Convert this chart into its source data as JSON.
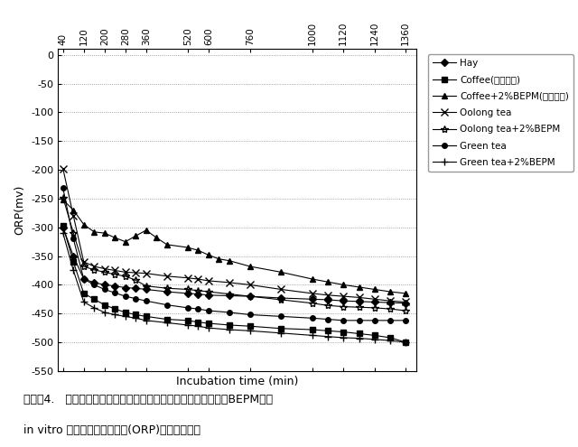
{
  "x_ticks": [
    40,
    120,
    200,
    280,
    360,
    520,
    600,
    760,
    1000,
    1120,
    1240,
    1360
  ],
  "ylim": [
    -550,
    10
  ],
  "yticks": [
    0,
    -50,
    -100,
    -150,
    -200,
    -250,
    -300,
    -350,
    -400,
    -450,
    -500,
    -550
  ],
  "ylabel": "ORP(mv)",
  "xlabel": "Incubation time (min)",
  "caption_line1": "グラプ4.   コーヒー糕、烏龍茶糕及び緑茶糕の微生物処理（２％BEPM）が",
  "caption_line2": "in vitro 培養液酸化還元電位(ORP)に及ぼす影響",
  "series": [
    {
      "label": "Hay",
      "marker": "D",
      "markersize": 4,
      "color": "#000000",
      "x": [
        40,
        80,
        120,
        160,
        200,
        240,
        280,
        320,
        360,
        440,
        520,
        560,
        600,
        680,
        760,
        880,
        1000,
        1060,
        1120,
        1180,
        1240,
        1300,
        1360
      ],
      "y": [
        -300,
        -350,
        -390,
        -396,
        -400,
        -402,
        -405,
        -406,
        -408,
        -412,
        -415,
        -416,
        -418,
        -419,
        -420,
        -423,
        -425,
        -426,
        -428,
        -429,
        -430,
        -431,
        -432
      ]
    },
    {
      "label": "Coffee(比較例１)",
      "marker": "s",
      "markersize": 4,
      "color": "#000000",
      "x": [
        40,
        80,
        120,
        160,
        200,
        240,
        280,
        320,
        360,
        440,
        520,
        560,
        600,
        680,
        760,
        880,
        1000,
        1060,
        1120,
        1180,
        1240,
        1300,
        1360
      ],
      "y": [
        -298,
        -360,
        -415,
        -425,
        -435,
        -442,
        -448,
        -452,
        -455,
        -460,
        -462,
        -465,
        -467,
        -470,
        -472,
        -476,
        -478,
        -480,
        -482,
        -485,
        -488,
        -492,
        -500
      ]
    },
    {
      "label": "Coffee+2%BEPM(実施例１)",
      "marker": "^",
      "markersize": 5,
      "color": "#000000",
      "x": [
        40,
        80,
        120,
        160,
        200,
        240,
        280,
        320,
        360,
        400,
        440,
        520,
        560,
        600,
        640,
        680,
        760,
        880,
        1000,
        1060,
        1120,
        1180,
        1240,
        1300,
        1360
      ],
      "y": [
        -252,
        -270,
        -295,
        -308,
        -310,
        -318,
        -325,
        -315,
        -305,
        -318,
        -330,
        -335,
        -340,
        -348,
        -355,
        -358,
        -368,
        -378,
        -390,
        -395,
        -400,
        -404,
        -408,
        -412,
        -415
      ]
    },
    {
      "label": "Oolong tea",
      "marker": "x",
      "markersize": 6,
      "color": "#000000",
      "x": [
        40,
        80,
        120,
        160,
        200,
        240,
        280,
        320,
        360,
        440,
        520,
        560,
        600,
        680,
        760,
        880,
        1000,
        1060,
        1120,
        1180,
        1240,
        1300,
        1360
      ],
      "y": [
        -198,
        -280,
        -360,
        -368,
        -372,
        -375,
        -378,
        -379,
        -380,
        -385,
        -388,
        -390,
        -393,
        -396,
        -400,
        -408,
        -415,
        -418,
        -420,
        -422,
        -425,
        -428,
        -430
      ]
    },
    {
      "label": "Oolong tea+2%BEPM",
      "marker": "*",
      "markersize": 6,
      "color": "#000000",
      "x": [
        40,
        80,
        120,
        160,
        200,
        240,
        280,
        320,
        360,
        440,
        520,
        560,
        600,
        680,
        760,
        880,
        1000,
        1060,
        1120,
        1180,
        1240,
        1300,
        1360
      ],
      "y": [
        -248,
        -310,
        -368,
        -374,
        -378,
        -382,
        -385,
        -392,
        -402,
        -406,
        -408,
        -410,
        -412,
        -416,
        -420,
        -426,
        -432,
        -436,
        -438,
        -439,
        -440,
        -442,
        -445
      ]
    },
    {
      "label": "Green tea",
      "marker": "o",
      "markersize": 4,
      "color": "#000000",
      "x": [
        40,
        80,
        120,
        160,
        200,
        240,
        280,
        320,
        360,
        440,
        520,
        560,
        600,
        680,
        760,
        880,
        1000,
        1060,
        1120,
        1180,
        1240,
        1300,
        1360
      ],
      "y": [
        -232,
        -320,
        -390,
        -400,
        -408,
        -414,
        -420,
        -424,
        -428,
        -435,
        -440,
        -442,
        -445,
        -448,
        -452,
        -455,
        -458,
        -460,
        -462,
        -462,
        -462,
        -462,
        -462
      ]
    },
    {
      "label": "Green tea+2%BEPM",
      "marker": "+",
      "markersize": 6,
      "color": "#000000",
      "x": [
        40,
        80,
        120,
        160,
        200,
        240,
        280,
        320,
        360,
        440,
        520,
        560,
        600,
        680,
        760,
        880,
        1000,
        1060,
        1120,
        1180,
        1240,
        1300,
        1360
      ],
      "y": [
        -310,
        -375,
        -430,
        -440,
        -448,
        -452,
        -455,
        -458,
        -462,
        -466,
        -470,
        -472,
        -475,
        -478,
        -480,
        -484,
        -488,
        -490,
        -492,
        -493,
        -495,
        -497,
        -500
      ]
    }
  ]
}
